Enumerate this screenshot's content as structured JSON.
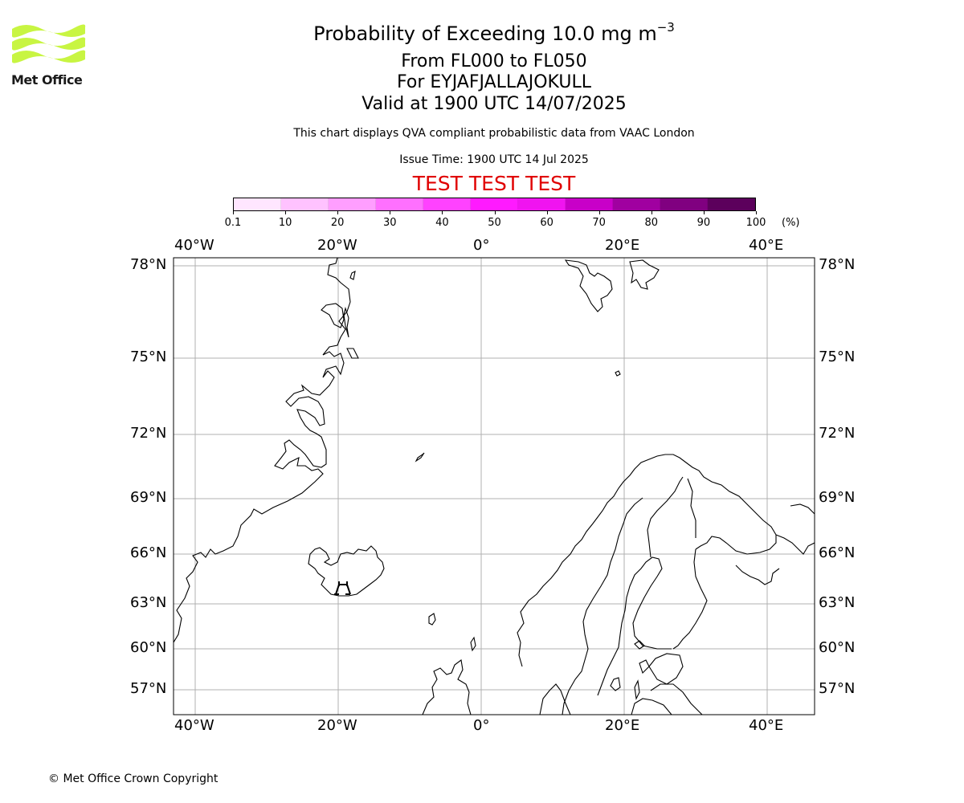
{
  "logo": {
    "text": "Met Office",
    "green": "#c8f542"
  },
  "title": {
    "main": "Probability of Exceeding 10.0 mg m",
    "superscript": "−3"
  },
  "subtitle": {
    "levels": "From FL000 to FL050",
    "volcano": "For EYJAFJALLAJOKULL",
    "valid": "Valid at 1900 UTC 14/07/2025"
  },
  "disclaimer": "This chart displays QVA compliant probabilistic data from VAAC London",
  "issue_time": "Issue Time: 1900 UTC 14 Jul 2025",
  "test_banner": "TEST TEST TEST",
  "colorbar": {
    "ticks": [
      "0.1",
      "10",
      "20",
      "30",
      "40",
      "50",
      "60",
      "70",
      "80",
      "90",
      "100"
    ],
    "unit": "(%)",
    "colors": [
      "#ffe6ff",
      "#ffc2ff",
      "#ff9eff",
      "#ff70ff",
      "#ff42ff",
      "#ff1aff",
      "#f014f0",
      "#c800c8",
      "#a000a0",
      "#800080",
      "#5c005c"
    ]
  },
  "map": {
    "lon_labels": [
      "40°W",
      "20°W",
      "0°",
      "20°E",
      "40°E"
    ],
    "lat_labels": [
      "78°N",
      "75°N",
      "72°N",
      "69°N",
      "66°N",
      "63°N",
      "60°N",
      "57°N"
    ],
    "volcano_name": "EYJAFJALLAJOKULL"
  },
  "copyright": "© Met Office Crown Copyright"
}
